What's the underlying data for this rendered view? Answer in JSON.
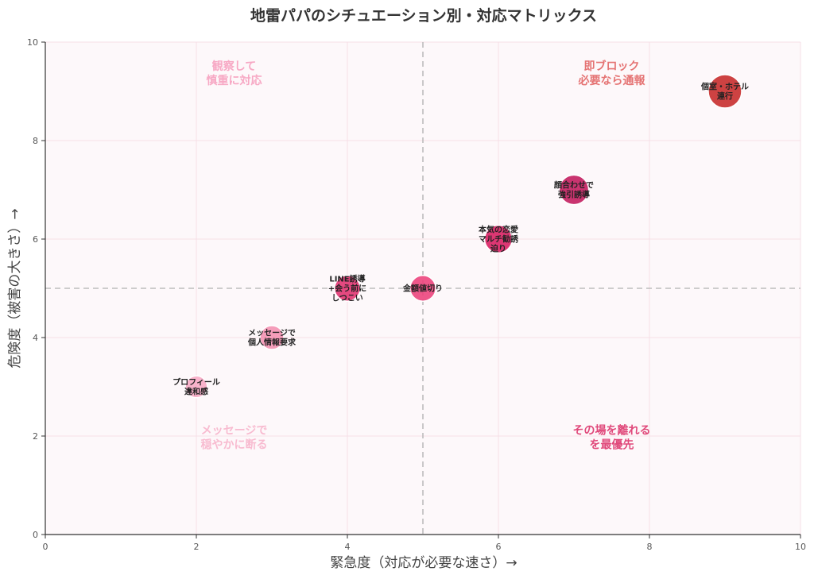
{
  "chart_data": {
    "type": "scatter",
    "title": "地雷パパのシチュエーション別・対応マトリックス",
    "xlabel": "緊急度（対応が必要な速さ）→",
    "ylabel": "危険度（被害の大きさ）→",
    "xlim": [
      0,
      10
    ],
    "ylim": [
      0,
      10
    ],
    "xticks": [
      "0",
      "2",
      "4",
      "6",
      "8",
      "10"
    ],
    "yticks": [
      "0",
      "2",
      "4",
      "6",
      "8",
      "10"
    ],
    "grid": true,
    "divider": {
      "x": 5,
      "y": 5
    },
    "points": [
      {
        "x": 2,
        "y": 3,
        "label": "プロフィール\n違和感",
        "color": "#f7a8c4",
        "size": 0.9
      },
      {
        "x": 3,
        "y": 4,
        "label": "メッセージで\n個人情報要求",
        "color": "#f48fb1",
        "size": 1.0
      },
      {
        "x": 4,
        "y": 5,
        "label": "LINE誘導\n+会う前に\nしつこい",
        "color": "#e0306e",
        "size": 1.1
      },
      {
        "x": 5,
        "y": 5,
        "label": "金額値切り",
        "color": "#ec407a",
        "size": 1.1
      },
      {
        "x": 6,
        "y": 6,
        "label": "本気の恋愛\nマルチ勧誘\n迫り",
        "color": "#d81b60",
        "size": 1.2
      },
      {
        "x": 7,
        "y": 7,
        "label": "顔合わせで\n強引誘導",
        "color": "#c2185b",
        "size": 1.3
      },
      {
        "x": 9,
        "y": 9,
        "label": "個室・ホテル\n連行",
        "color": "#c62828",
        "size": 1.5
      }
    ],
    "quadrant_labels": [
      {
        "x": 2.5,
        "y": 9.6,
        "text": "観察して\n慎重に対応",
        "color": "#f7a8c4"
      },
      {
        "x": 7.5,
        "y": 9.6,
        "text": "即ブロック\n必要なら通報",
        "color": "#e57373"
      },
      {
        "x": 2.5,
        "y": 2.2,
        "text": "メッセージで\n穏やかに断る",
        "color": "#f8bbd0"
      },
      {
        "x": 7.5,
        "y": 2.2,
        "text": "その場を離れる\nを最優先",
        "color": "#e0487a"
      }
    ]
  }
}
